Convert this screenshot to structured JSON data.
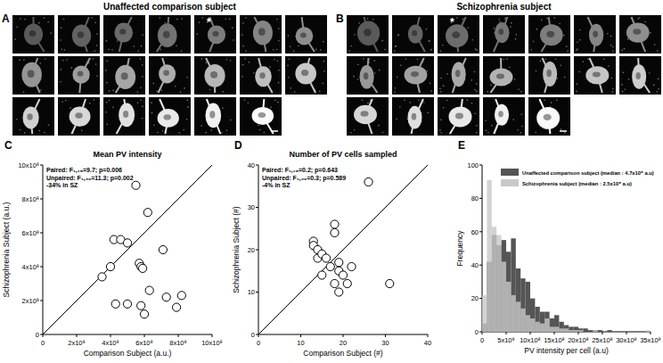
{
  "figure": {
    "panels": [
      {
        "label": "A",
        "title": "Unaffected comparison subject",
        "image_rows": [
          7,
          7,
          6
        ],
        "asterisk": "*",
        "asterisk_tile": 4
      },
      {
        "label": "B",
        "title": "Schizophrenia subject",
        "image_rows": [
          7,
          7,
          5
        ],
        "asterisk": "*",
        "asterisk_tile": 2
      }
    ]
  },
  "chart_data": [
    {
      "type": "scatter",
      "panel_label": "C",
      "title": "Mean PV intensity",
      "x_label": "Comparison Subject (a.u.)",
      "y_label": "Schizophrenia Subject (a.u.)",
      "annotations": [
        "Paired: F₁,₁₈=9.7; p=0.006",
        "Unpaired: F₁,₃₆=11.3; p=0.002",
        "-34% in SZ"
      ],
      "x": [
        350000000,
        400000000,
        420000000,
        460000000,
        430000000,
        500000000,
        500000000,
        550000000,
        570000000,
        580000000,
        590000000,
        580000000,
        600000000,
        620000000,
        630000000,
        710000000,
        730000000,
        790000000,
        820000000
      ],
      "values": [
        340000000,
        400000000,
        560000000,
        560000000,
        180000000,
        540000000,
        180000000,
        880000000,
        420000000,
        400000000,
        390000000,
        170000000,
        120000000,
        720000000,
        260000000,
        500000000,
        220000000,
        160000000,
        230000000
      ],
      "marker": "circle",
      "xlim": [
        0,
        1000000000
      ],
      "ylim": [
        0,
        1000000000
      ],
      "xticks": [
        0,
        {
          "value": 200000000,
          "label": "2x10⁸"
        },
        {
          "value": 400000000,
          "label": "4x10⁸"
        },
        {
          "value": 600000000,
          "label": "6x10⁸"
        },
        {
          "value": 800000000,
          "label": "8x10⁸"
        },
        {
          "value": 1000000000,
          "label": "10x10⁸"
        }
      ],
      "yticks": [
        0,
        {
          "value": 200000000,
          "label": "2x10⁸"
        },
        {
          "value": 400000000,
          "label": "4x10⁸"
        },
        {
          "value": 600000000,
          "label": "6x10⁸"
        },
        {
          "value": 800000000,
          "label": "8x10⁸"
        },
        {
          "value": 1000000000,
          "label": "10x10⁸"
        }
      ],
      "grid": false
    },
    {
      "type": "scatter",
      "panel_label": "D",
      "title": "Number of PV cells sampled",
      "x_label": "Comparison Subject (#)",
      "y_label": "Schizophrenia Subject (#)",
      "annotations": [
        "Paired: F₁,₁₈=0.2; p=0.643",
        "Unpaired: F₁,₃₆=0.3; p=0.589",
        "-4% in SZ"
      ],
      "x": [
        13,
        13,
        14,
        14,
        15,
        16,
        15,
        17,
        18,
        18,
        18,
        19,
        19,
        19,
        20,
        21,
        22,
        26,
        31
      ],
      "values": [
        22,
        21,
        20,
        18,
        19,
        18,
        14,
        16,
        12,
        26,
        24,
        17,
        15,
        10,
        14,
        12,
        16,
        36,
        12
      ],
      "marker": "circle",
      "xlim": [
        0,
        40
      ],
      "ylim": [
        0,
        40
      ],
      "xticks": [
        0,
        10,
        20,
        30,
        40
      ],
      "yticks": [
        0,
        10,
        20,
        30,
        40
      ],
      "grid": false
    },
    {
      "type": "histogram",
      "panel_label": "E",
      "x_label": "PV intensity per cell (a.u)",
      "y_label": "Frequency",
      "bins": [
        0,
        100000000,
        200000000,
        300000000,
        400000000,
        500000000,
        600000000,
        700000000,
        800000000,
        900000000,
        1000000000,
        1100000000,
        1200000000,
        1300000000,
        1400000000,
        1500000000,
        1600000000,
        1700000000,
        1800000000,
        1900000000,
        2000000000,
        2100000000,
        2200000000,
        2300000000,
        2400000000,
        2500000000,
        2600000000,
        2700000000,
        2800000000,
        2900000000,
        3000000000,
        3100000000,
        3200000000,
        3300000000,
        3400000000,
        3500000000
      ],
      "series": [
        {
          "name": "Unaffected comparison subject (median : 4.7x10⁸ a.u)",
          "color": "#555555",
          "values": [
            5,
            42,
            58,
            52,
            55,
            48,
            56,
            38,
            32,
            30,
            20,
            15,
            12,
            12,
            8,
            10,
            6,
            4,
            3,
            3,
            2,
            2,
            1,
            1,
            1,
            0,
            1,
            0,
            0,
            0,
            0,
            0,
            0,
            0,
            0
          ]
        },
        {
          "name": "Schizophrenia subject (median : 2.5x10⁸ a.u)",
          "color": "#c8c8c8",
          "values": [
            22,
            91,
            63,
            58,
            42,
            30,
            22,
            18,
            14,
            10,
            8,
            6,
            5,
            8,
            3,
            3,
            2,
            2,
            1,
            1,
            1,
            0,
            0,
            1,
            0,
            0,
            0,
            0,
            0,
            0,
            0,
            0,
            0,
            0,
            1
          ]
        }
      ],
      "xlim": [
        0,
        3500000000
      ],
      "ylim": [
        0,
        100
      ],
      "xticks": [
        0,
        {
          "value": 500000000,
          "label": "5x10⁸"
        },
        {
          "value": 1000000000,
          "label": "10x10⁸"
        },
        {
          "value": 1500000000,
          "label": "15x10⁸"
        },
        {
          "value": 2000000000,
          "label": "20x10⁸"
        },
        {
          "value": 2500000000,
          "label": "25x10⁸"
        },
        {
          "value": 3000000000,
          "label": "30x10⁸"
        },
        {
          "value": 3500000000,
          "label": "35x10⁸"
        }
      ],
      "yticks": [
        0,
        20,
        40,
        60,
        80,
        100
      ],
      "legend": "upper right",
      "grid": false
    }
  ]
}
